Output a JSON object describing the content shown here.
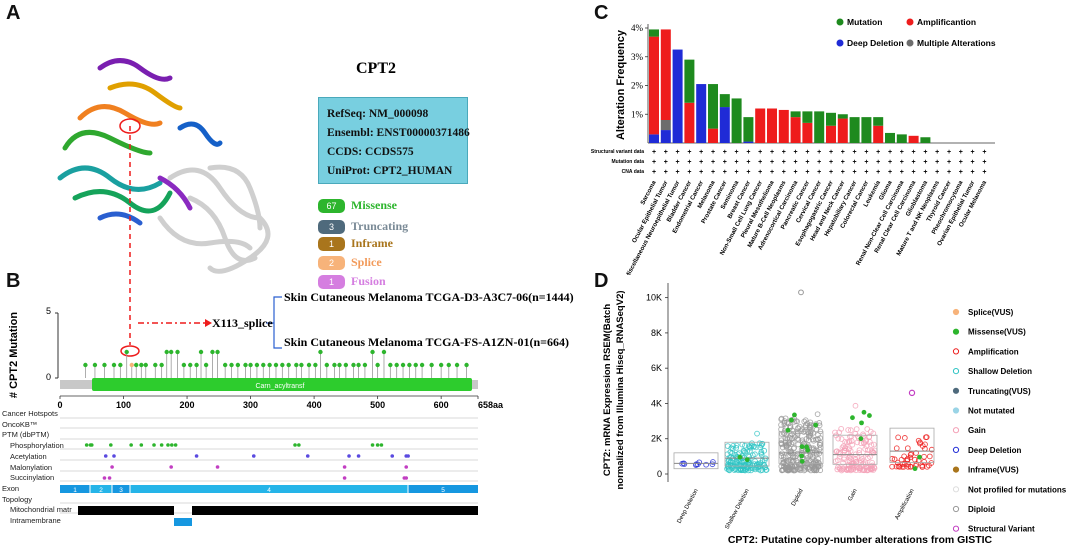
{
  "panelA": {
    "letter": "A",
    "gene": "CPT2",
    "info": [
      "RefSeq: NM_000098",
      "Ensembl: ENST00000371486",
      "CCDS: CCDS575",
      "UniProt: CPT2_HUMAN"
    ],
    "legend": [
      {
        "count": "67",
        "label": "Missense",
        "color": "#2db52d"
      },
      {
        "count": "3",
        "label": "Truncating",
        "color": "#4f6a7c"
      },
      {
        "count": "1",
        "label": "Inframe",
        "color": "#a9751c"
      },
      {
        "count": "2",
        "label": "Splice",
        "color": "#f7b37a"
      },
      {
        "count": "1",
        "label": "Fusion",
        "color": "#d57ee0"
      }
    ]
  },
  "panelB": {
    "letter": "B",
    "ylabel": "# CPT2 Mutation",
    "ymax": "5",
    "ymin": "0",
    "callout": "X113_splice",
    "samples": [
      "Skin Cutaneous Melanoma TCGA-D3-A3C7-06(n=1444)",
      "Skin Cutaneous Melanoma TCGA-FS-A1ZN-01(n=664)"
    ],
    "domain": "Carn_acyltransf",
    "xticks": [
      "0",
      "100",
      "200",
      "300",
      "400",
      "500",
      "600",
      "658aa"
    ],
    "tracks": [
      "Cancer Hotspots",
      "OncoKB™",
      "PTM (dbPTM)",
      "Phosphorylation",
      "Acetylation",
      "Malonylation",
      "Succinylation",
      "Exon",
      "Topology",
      "Mitochondrial matr",
      "Intramembrane"
    ],
    "exons": [
      "1",
      "2",
      "3",
      "4",
      "5"
    ]
  },
  "chart_data": [
    {
      "type": "bar",
      "panel": "C",
      "ylabel": "Alteration Frequency",
      "ylim": [
        0,
        4
      ],
      "yticks": [
        "4%",
        "3%",
        "2%",
        "1%"
      ],
      "legend": [
        {
          "name": "Mutation",
          "color": "#1e8a1e"
        },
        {
          "name": "Amplificantion",
          "color": "#ee1c1c"
        },
        {
          "name": "Deep Deletion",
          "color": "#1f2bd6"
        },
        {
          "name": "Multiple Alterations",
          "color": "#6d6d6d"
        }
      ],
      "rows": [
        "Structural variant data",
        "Mutation data",
        "CNA data"
      ],
      "categories": [
        "Sarcoma",
        "Ocular Epithelial Tumor",
        "Miscellaneous Neuroepithelial Tumor",
        "Bladder Cancer",
        "Endometrial Cancer",
        "Melanoma",
        "Prostate Cancer",
        "Seminoma",
        "Breast Cancer",
        "Non-Small Cell Lung Cancer",
        "Pleural Mesothelioma",
        "Mature B-Cell Neoplasms",
        "Adrenocortical Carcinoma",
        "Pancreatic Cancer",
        "Cervical Cancer",
        "Esophagogastric Cancer",
        "Head and Neck Cancer",
        "Hepatobiliary Cancer",
        "Colorectal Cancer",
        "Leukemia",
        "Glioma",
        "Renal Non-Clear Cell Carcinoma",
        "Renal Clear Cell Carcinoma",
        "Glioblastoma",
        "Mature T and NK Neoplasms",
        "Thyroid Cancer",
        "Pheochromocytoma",
        "Ovarian Epithelial Tumor",
        "Ocular Melanoma"
      ],
      "series": [
        {
          "name": "Mutation",
          "values": [
            0.25,
            0.0,
            0.0,
            1.5,
            0.0,
            1.55,
            0.45,
            0.0,
            0.65,
            0.0,
            0.0,
            0.0,
            0.2,
            0.4,
            0.0,
            0.45,
            0.15,
            0.9,
            0.9,
            0.3,
            0.35,
            0.3,
            0.0,
            0.2,
            0.0,
            0.0,
            0.0,
            0.0,
            0.0
          ]
        },
        {
          "name": "Amplificantion",
          "values": [
            3.4,
            3.15,
            0.0,
            1.4,
            0.0,
            0.5,
            0.0,
            0.0,
            0.0,
            1.2,
            1.2,
            1.15,
            0.9,
            0.7,
            0.0,
            0.6,
            0.85,
            0.0,
            0.0,
            0.6,
            0.0,
            0.0,
            0.25,
            0.0,
            0.0,
            0.0,
            0.0,
            0.0,
            0.0
          ]
        },
        {
          "name": "Deep Deletion",
          "values": [
            0.3,
            0.45,
            3.25,
            0.0,
            2.05,
            0.0,
            1.25,
            0.0,
            0.05,
            0.0,
            0.0,
            0.0,
            0.0,
            0.0,
            0.0,
            0.0,
            0.0,
            0.0,
            0.0,
            0.0,
            0.0,
            0.0,
            0.0,
            0.0,
            0.0,
            0.0,
            0.0,
            0.0,
            0.0
          ]
        },
        {
          "name": "Multiple Alterations",
          "values": [
            0.0,
            0.35,
            0.0,
            0.0,
            0.0,
            0.0,
            0.0,
            0.0,
            0.0,
            0.0,
            0.0,
            0.0,
            0.0,
            0.0,
            0.0,
            0.0,
            0.0,
            0.0,
            0.0,
            0.0,
            0.0,
            0.0,
            0.0,
            0.0,
            0.0,
            0.0,
            0.0,
            0.0,
            0.0
          ]
        }
      ],
      "extra_mutation": [
        0,
        0,
        0,
        0,
        0,
        0,
        0,
        1.55,
        0.2,
        0,
        0,
        0,
        0,
        0,
        1.1,
        0,
        0,
        0,
        0,
        0,
        0,
        0,
        0,
        0,
        0,
        0,
        0,
        0,
        0
      ]
    },
    {
      "type": "scatter",
      "panel": "D",
      "ylabel": [
        "CPT2: mRNA Expression RSEM(Batch",
        "normalized from Illumina Hiseq_RNASeqV2)"
      ],
      "xlabel": "CPT2: Putatine copy-number alterations from GISTIC",
      "ylim": [
        0,
        10000
      ],
      "yticks": [
        "10K",
        "8K",
        "6K",
        "4K",
        "2K",
        "0"
      ],
      "categories": [
        "Deep Deletion",
        "Shallow Deletion",
        "Diploid",
        "Gain",
        "Amplification"
      ],
      "medians": [
        600,
        900,
        1200,
        1100,
        1300
      ],
      "legend": [
        {
          "name": "Splice(VUS)",
          "color": "#f7b37a",
          "fill": true
        },
        {
          "name": "Missense(VUS)",
          "color": "#2db52d",
          "fill": true
        },
        {
          "name": "Amplification",
          "color": "#ee1c1c",
          "fill": false
        },
        {
          "name": "Shallow Deletion",
          "color": "#2ec4c4",
          "fill": false
        },
        {
          "name": "Truncating(VUS)",
          "color": "#4f6a7c",
          "fill": true
        },
        {
          "name": "Not mutated",
          "color": "#9ad4e6",
          "fill": true
        },
        {
          "name": "Gain",
          "color": "#f4a0b6",
          "fill": false
        },
        {
          "name": "Deep Deletion",
          "color": "#1f2bd6",
          "fill": false
        },
        {
          "name": "Inframe(VUS)",
          "color": "#a9751c",
          "fill": true
        },
        {
          "name": "Not profiled for mutations",
          "color": "#dddddd",
          "fill": false
        },
        {
          "name": "Diploid",
          "color": "#999999",
          "fill": false
        },
        {
          "name": "Structural Variant",
          "color": "#c23ec2",
          "fill": false
        }
      ]
    }
  ]
}
